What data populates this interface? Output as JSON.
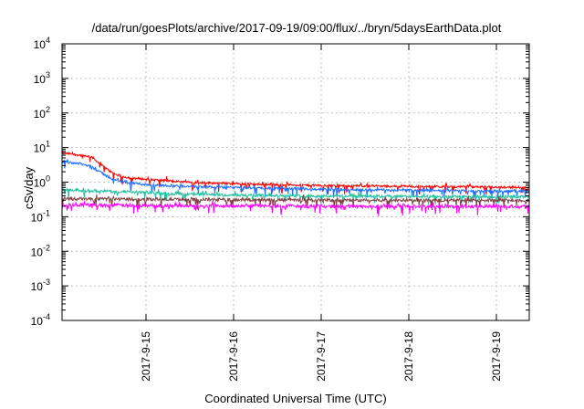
{
  "chart_data": {
    "type": "line",
    "title": "/data/run/goesPlots/archive/2017-09-19/09:00/flux/../bryn/5daysEarthData.plot",
    "xlabel": "Coordinated Universal Time (UTC)",
    "ylabel": "cSv/day",
    "y_scale": "log",
    "ylim": [
      0.0001,
      10000
    ],
    "y_ticks": [
      {
        "exp": "4",
        "value": 10000
      },
      {
        "exp": "3",
        "value": 1000
      },
      {
        "exp": "2",
        "value": 100
      },
      {
        "exp": "1",
        "value": 10
      },
      {
        "exp": "0",
        "value": 1
      },
      {
        "exp": "-1",
        "value": 0.1
      },
      {
        "exp": "-2",
        "value": 0.01
      },
      {
        "exp": "-3",
        "value": 0.001
      },
      {
        "exp": "-4",
        "value": 0.0001
      }
    ],
    "y_tick_base": "10",
    "xlim": [
      "2017-09-14 01:00",
      "2017-09-19 09:00"
    ],
    "x_ticks": [
      {
        "label": "2017-9-15",
        "value": "2017-09-15 00:00"
      },
      {
        "label": "2017-9-16",
        "value": "2017-09-16 00:00"
      },
      {
        "label": "2017-9-17",
        "value": "2017-09-17 00:00"
      },
      {
        "label": "2017-9-18",
        "value": "2017-09-18 00:00"
      },
      {
        "label": "2017-9-19",
        "value": "2017-09-19 00:00"
      }
    ],
    "grid": true,
    "series": [
      {
        "color": "#ff0000",
        "x": [
          "2017-09-14 01:00",
          "2017-09-14 06:00",
          "2017-09-14 09:00",
          "2017-09-14 12:00",
          "2017-09-14 15:00",
          "2017-09-14 18:00",
          "2017-09-15 00:00",
          "2017-09-15 12:00",
          "2017-09-16 00:00",
          "2017-09-17 00:00",
          "2017-09-18 00:00",
          "2017-09-19 00:00",
          "2017-09-19 09:00"
        ],
        "y": [
          7,
          6,
          5.5,
          3,
          1.8,
          1.4,
          1.2,
          1.0,
          0.9,
          0.8,
          0.75,
          0.72,
          0.7
        ]
      },
      {
        "color": "#1e6fff",
        "x": [
          "2017-09-14 01:00",
          "2017-09-14 06:00",
          "2017-09-14 09:00",
          "2017-09-14 12:00",
          "2017-09-14 15:00",
          "2017-09-14 18:00",
          "2017-09-15 00:00",
          "2017-09-15 12:00",
          "2017-09-16 00:00",
          "2017-09-17 00:00",
          "2017-09-18 00:00",
          "2017-09-19 00:00",
          "2017-09-19 09:00"
        ],
        "y": [
          4,
          3.4,
          2.8,
          1.8,
          1.2,
          1.0,
          0.85,
          0.75,
          0.7,
          0.62,
          0.58,
          0.55,
          0.55
        ]
      },
      {
        "color": "#20c0a0",
        "x": [
          "2017-09-14 01:00",
          "2017-09-14 12:00",
          "2017-09-15 00:00",
          "2017-09-15 12:00",
          "2017-09-16 00:00",
          "2017-09-17 00:00",
          "2017-09-18 00:00",
          "2017-09-19 00:00",
          "2017-09-19 09:00"
        ],
        "y": [
          0.6,
          0.55,
          0.5,
          0.45,
          0.42,
          0.4,
          0.38,
          0.38,
          0.38
        ]
      },
      {
        "color": "#804040",
        "x": [
          "2017-09-14 01:00",
          "2017-09-15 00:00",
          "2017-09-16 00:00",
          "2017-09-17 00:00",
          "2017-09-18 00:00",
          "2017-09-19 00:00",
          "2017-09-19 09:00"
        ],
        "y": [
          0.33,
          0.32,
          0.31,
          0.3,
          0.3,
          0.3,
          0.3
        ]
      },
      {
        "color": "#ff00ff",
        "x": [
          "2017-09-14 01:00",
          "2017-09-15 00:00",
          "2017-09-16 00:00",
          "2017-09-17 00:00",
          "2017-09-18 00:00",
          "2017-09-19 00:00",
          "2017-09-19 09:00"
        ],
        "y": [
          0.22,
          0.21,
          0.21,
          0.2,
          0.2,
          0.2,
          0.2
        ]
      }
    ]
  }
}
